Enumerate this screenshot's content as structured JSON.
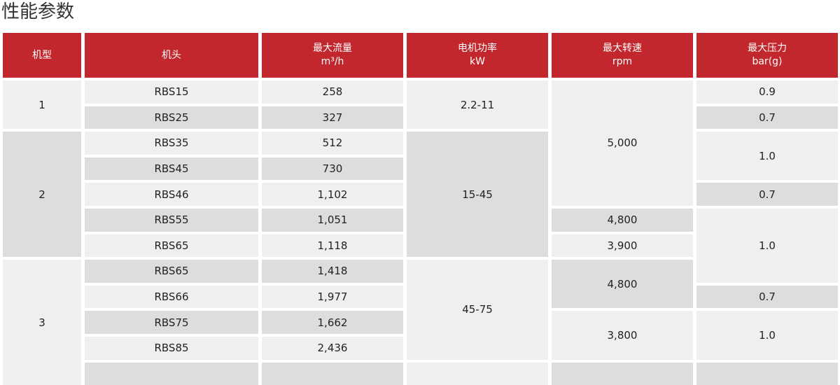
{
  "title": "性能参数",
  "colors": {
    "header": "#c1272d",
    "light": "#efefef",
    "dark": "#dcdddd"
  },
  "headers": [
    {
      "label": "机型",
      "unit": ""
    },
    {
      "label": "机头",
      "unit": ""
    },
    {
      "label": "最大流量",
      "unit": "m³/h"
    },
    {
      "label": "电机功率",
      "unit": "kW"
    },
    {
      "label": "最大转速",
      "unit": "rpm"
    },
    {
      "label": "最大压力",
      "unit": "bar(g)"
    }
  ],
  "columns": [
    [
      {
        "v": "1",
        "rows": 2,
        "shade": "light"
      },
      {
        "v": "2",
        "rows": 5,
        "shade": "dark"
      },
      {
        "v": "3",
        "rows": 5,
        "shade": "light"
      }
    ],
    [
      {
        "v": "RBS15",
        "rows": 1,
        "shade": "light"
      },
      {
        "v": "RBS25",
        "rows": 1,
        "shade": "dark"
      },
      {
        "v": "RBS35",
        "rows": 1,
        "shade": "light"
      },
      {
        "v": "RBS45",
        "rows": 1,
        "shade": "dark"
      },
      {
        "v": "RBS46",
        "rows": 1,
        "shade": "light"
      },
      {
        "v": "RBS55",
        "rows": 1,
        "shade": "dark"
      },
      {
        "v": "RBS65",
        "rows": 1,
        "shade": "light"
      },
      {
        "v": "RBS65",
        "rows": 1,
        "shade": "dark"
      },
      {
        "v": "RBS66",
        "rows": 1,
        "shade": "light"
      },
      {
        "v": "RBS75",
        "rows": 1,
        "shade": "dark"
      },
      {
        "v": "RBS85",
        "rows": 1,
        "shade": "light"
      },
      {
        "v": "",
        "rows": 1,
        "shade": "dark"
      }
    ],
    [
      {
        "v": "258",
        "rows": 1,
        "shade": "light"
      },
      {
        "v": "327",
        "rows": 1,
        "shade": "dark"
      },
      {
        "v": "512",
        "rows": 1,
        "shade": "light"
      },
      {
        "v": "730",
        "rows": 1,
        "shade": "dark"
      },
      {
        "v": "1,102",
        "rows": 1,
        "shade": "light"
      },
      {
        "v": "1,051",
        "rows": 1,
        "shade": "dark"
      },
      {
        "v": "1,118",
        "rows": 1,
        "shade": "light"
      },
      {
        "v": "1,418",
        "rows": 1,
        "shade": "dark"
      },
      {
        "v": "1,977",
        "rows": 1,
        "shade": "light"
      },
      {
        "v": "1,662",
        "rows": 1,
        "shade": "dark"
      },
      {
        "v": "2,436",
        "rows": 1,
        "shade": "light"
      },
      {
        "v": "",
        "rows": 1,
        "shade": "dark"
      }
    ],
    [
      {
        "v": "2.2-11",
        "rows": 2,
        "shade": "light"
      },
      {
        "v": "15-45",
        "rows": 5,
        "shade": "dark"
      },
      {
        "v": "45-75",
        "rows": 4,
        "shade": "light"
      },
      {
        "v": "",
        "rows": 1,
        "shade": "light"
      }
    ],
    [
      {
        "v": "5,000",
        "rows": 5,
        "shade": "light"
      },
      {
        "v": "4,800",
        "rows": 1,
        "shade": "dark"
      },
      {
        "v": "3,900",
        "rows": 1,
        "shade": "light"
      },
      {
        "v": "4,800",
        "rows": 2,
        "shade": "dark"
      },
      {
        "v": "3,800",
        "rows": 2,
        "shade": "light"
      },
      {
        "v": "",
        "rows": 1,
        "shade": "dark"
      }
    ],
    [
      {
        "v": "0.9",
        "rows": 1,
        "shade": "light"
      },
      {
        "v": "0.7",
        "rows": 1,
        "shade": "dark"
      },
      {
        "v": "1.0",
        "rows": 2,
        "shade": "light"
      },
      {
        "v": "0.7",
        "rows": 1,
        "shade": "dark"
      },
      {
        "v": "1.0",
        "rows": 3,
        "shade": "light"
      },
      {
        "v": "0.7",
        "rows": 1,
        "shade": "dark"
      },
      {
        "v": "1.0",
        "rows": 2,
        "shade": "light"
      },
      {
        "v": "",
        "rows": 1,
        "shade": "dark"
      }
    ]
  ]
}
